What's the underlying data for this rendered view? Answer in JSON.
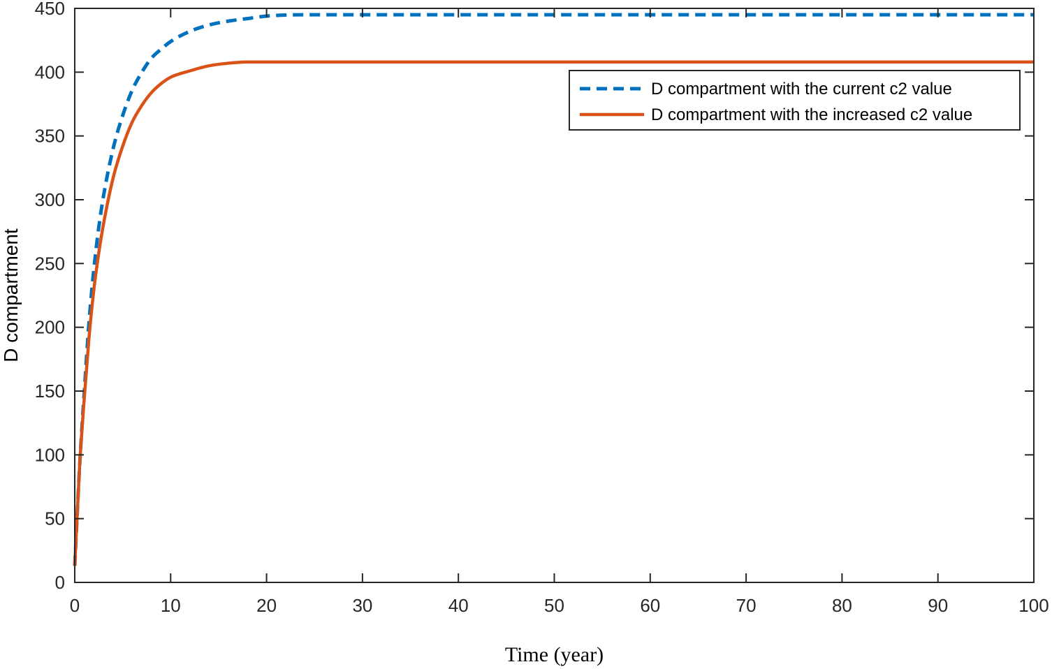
{
  "chart_data": {
    "type": "line",
    "title": "",
    "xlabel": "Time (year)",
    "ylabel": "D compartment",
    "xlim": [
      0,
      100
    ],
    "ylim": [
      0,
      450
    ],
    "xticks": [
      0,
      10,
      20,
      30,
      40,
      50,
      60,
      70,
      80,
      90,
      100
    ],
    "yticks": [
      0,
      50,
      100,
      150,
      200,
      250,
      300,
      350,
      400,
      450
    ],
    "grid": false,
    "legend_position": "top-right",
    "series": [
      {
        "name": "D compartment with the current c2 value",
        "color": "#0072BD",
        "style": "dashed",
        "x": [
          0,
          0.5,
          1,
          1.5,
          2,
          2.5,
          3,
          4,
          5,
          6,
          7,
          8,
          9,
          10,
          12,
          14,
          16,
          18,
          20,
          25,
          30,
          40,
          50,
          60,
          70,
          80,
          90,
          100
        ],
        "values": [
          13,
          90,
          150,
          205,
          246,
          278,
          303,
          340,
          366,
          386,
          400,
          411,
          418,
          424,
          432,
          437,
          440,
          442,
          444,
          445,
          445,
          445,
          445,
          445,
          445,
          445,
          445,
          445
        ]
      },
      {
        "name": "D compartment with the increased c2 value",
        "color": "#D95319",
        "style": "solid",
        "x": [
          0,
          0.5,
          1,
          1.5,
          2,
          2.5,
          3,
          4,
          5,
          6,
          7,
          8,
          9,
          10,
          12,
          14,
          16,
          18,
          20,
          25,
          30,
          40,
          50,
          60,
          70,
          80,
          90,
          100
        ],
        "values": [
          13,
          90,
          145,
          193,
          230,
          258,
          281,
          317,
          342,
          361,
          374,
          384,
          391,
          396,
          401,
          405,
          407,
          408,
          408,
          408,
          408,
          408,
          408,
          408,
          408,
          408,
          408,
          408
        ]
      }
    ]
  }
}
